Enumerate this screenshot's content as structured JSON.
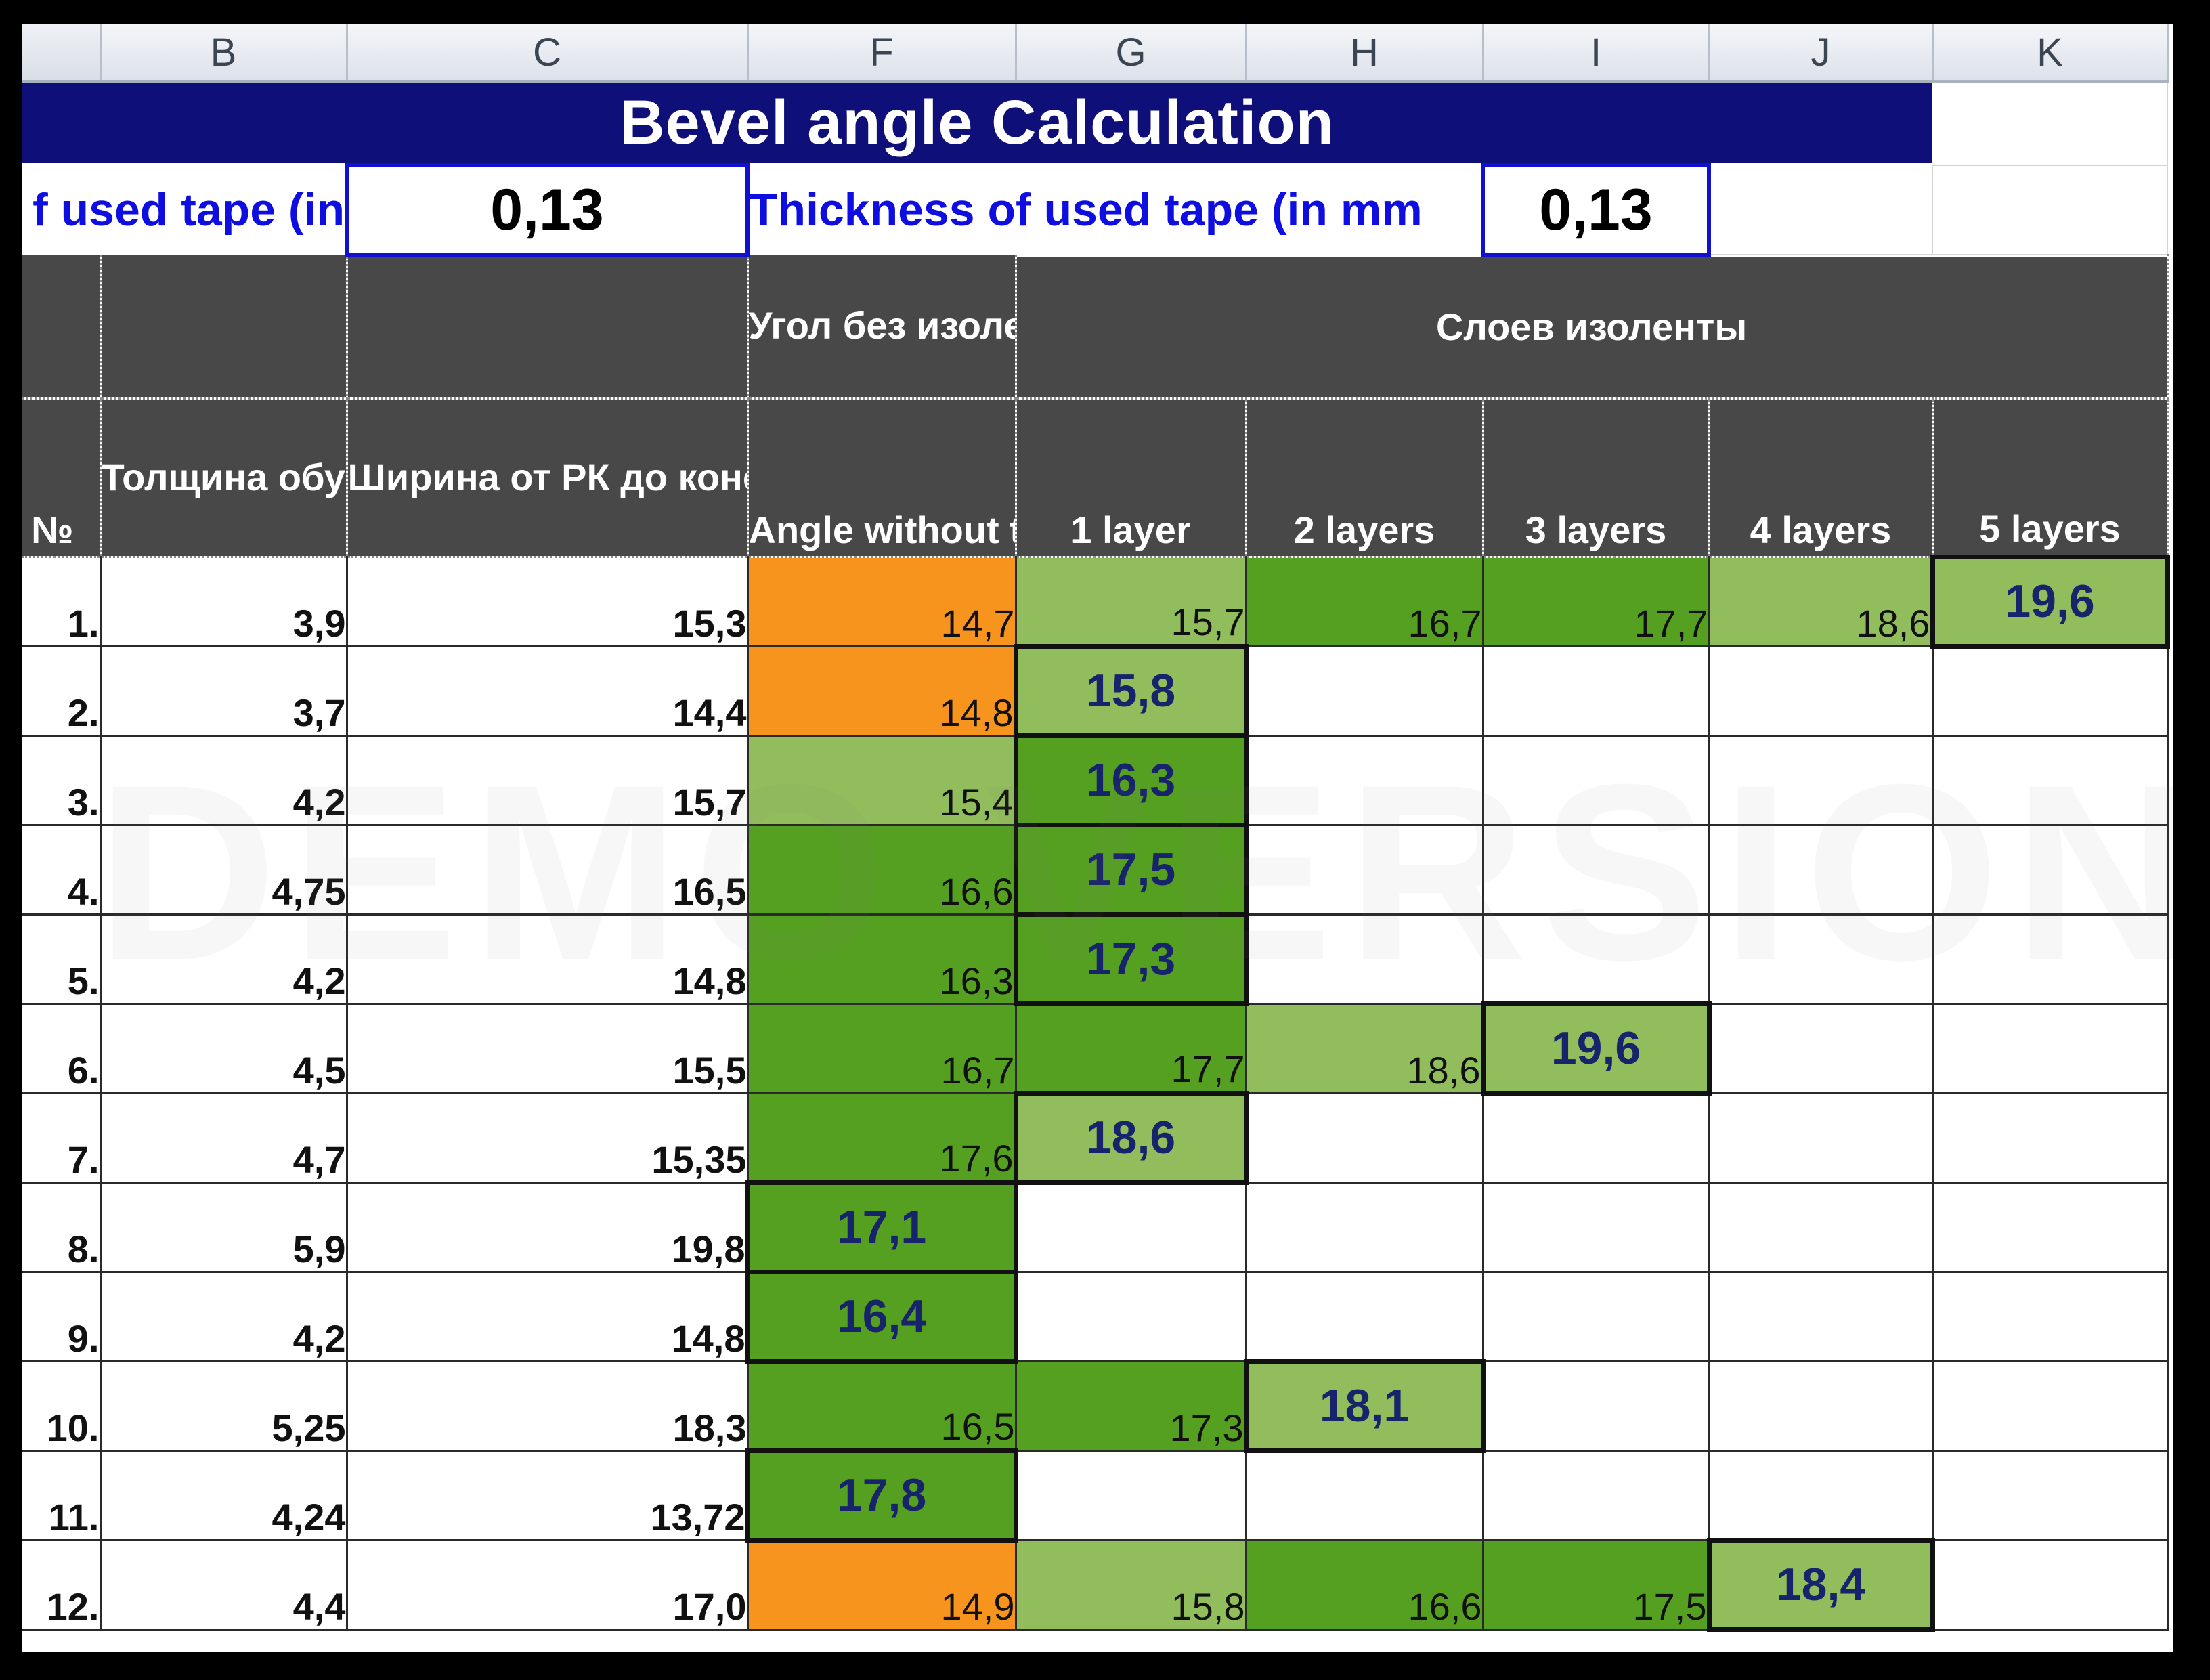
{
  "columns": [
    "B",
    "C",
    "F",
    "G",
    "H",
    "I",
    "J",
    "K"
  ],
  "title": "Bevel angle Calculation",
  "thickness": {
    "label_left": "f used tape (in",
    "value_left": "0,13",
    "label_right": "Thickness of used tape (in mm",
    "value_right": "0,13"
  },
  "header": {
    "angle_no_tape_ru": "Угол без изоленты",
    "layers_ru": "Слоев изоленты",
    "no": "№",
    "thickness_ru": "Толщина обуха",
    "width_ru": "Ширина от РК до конец полоски на обухе",
    "angle_no_tape_en": "Angle without tape",
    "layer_1": "1 layer",
    "layer_2": "2 layers",
    "layer_3": "3 layers",
    "layer_4": "4 layers",
    "layer_5": "5 layers"
  },
  "rows": [
    {
      "no": "1.",
      "thickness": "3,9",
      "width": "15,3",
      "angles": [
        "14,7",
        "15,7",
        "16,7",
        "17,7",
        "18,6",
        "19,6"
      ]
    },
    {
      "no": "2.",
      "thickness": "3,7",
      "width": "14,4",
      "angles": [
        "14,8",
        "15,8",
        "",
        "",
        "",
        ""
      ]
    },
    {
      "no": "3.",
      "thickness": "4,2",
      "width": "15,7",
      "angles": [
        "15,4",
        "16,3",
        "",
        "",
        "",
        ""
      ]
    },
    {
      "no": "4.",
      "thickness": "4,75",
      "width": "16,5",
      "angles": [
        "16,6",
        "17,5",
        "",
        "",
        "",
        ""
      ]
    },
    {
      "no": "5.",
      "thickness": "4,2",
      "width": "14,8",
      "angles": [
        "16,3",
        "17,3",
        "",
        "",
        "",
        ""
      ]
    },
    {
      "no": "6.",
      "thickness": "4,5",
      "width": "15,5",
      "angles": [
        "16,7",
        "17,7",
        "18,6",
        "19,6",
        "",
        ""
      ]
    },
    {
      "no": "7.",
      "thickness": "4,7",
      "width": "15,35",
      "angles": [
        "17,6",
        "18,6",
        "",
        "",
        "",
        ""
      ]
    },
    {
      "no": "8.",
      "thickness": "5,9",
      "width": "19,8",
      "angles": [
        "17,1",
        "",
        "",
        "",
        "",
        ""
      ]
    },
    {
      "no": "9.",
      "thickness": "4,2",
      "width": "14,8",
      "angles": [
        "16,4",
        "",
        "",
        "",
        "",
        ""
      ]
    },
    {
      "no": "10.",
      "thickness": "5,25",
      "width": "18,3",
      "angles": [
        "16,5",
        "17,3",
        "18,1",
        "",
        "",
        ""
      ]
    },
    {
      "no": "11.",
      "thickness": "4,24",
      "width": "13,72",
      "angles": [
        "17,8",
        "",
        "",
        "",
        "",
        ""
      ]
    },
    {
      "no": "12.",
      "thickness": "4,4",
      "width": "17,0",
      "angles": [
        "14,9",
        "15,8",
        "16,6",
        "17,5",
        "18,4",
        ""
      ]
    }
  ],
  "watermark": "DEMO VERSION",
  "colors": {
    "orange": "#f7941d",
    "light_green": "#92bd5c",
    "dark_green": "#56a021",
    "title_bg": "#0f0f7a",
    "header_bg": "#484848",
    "label_blue": "#0e0ee0"
  }
}
